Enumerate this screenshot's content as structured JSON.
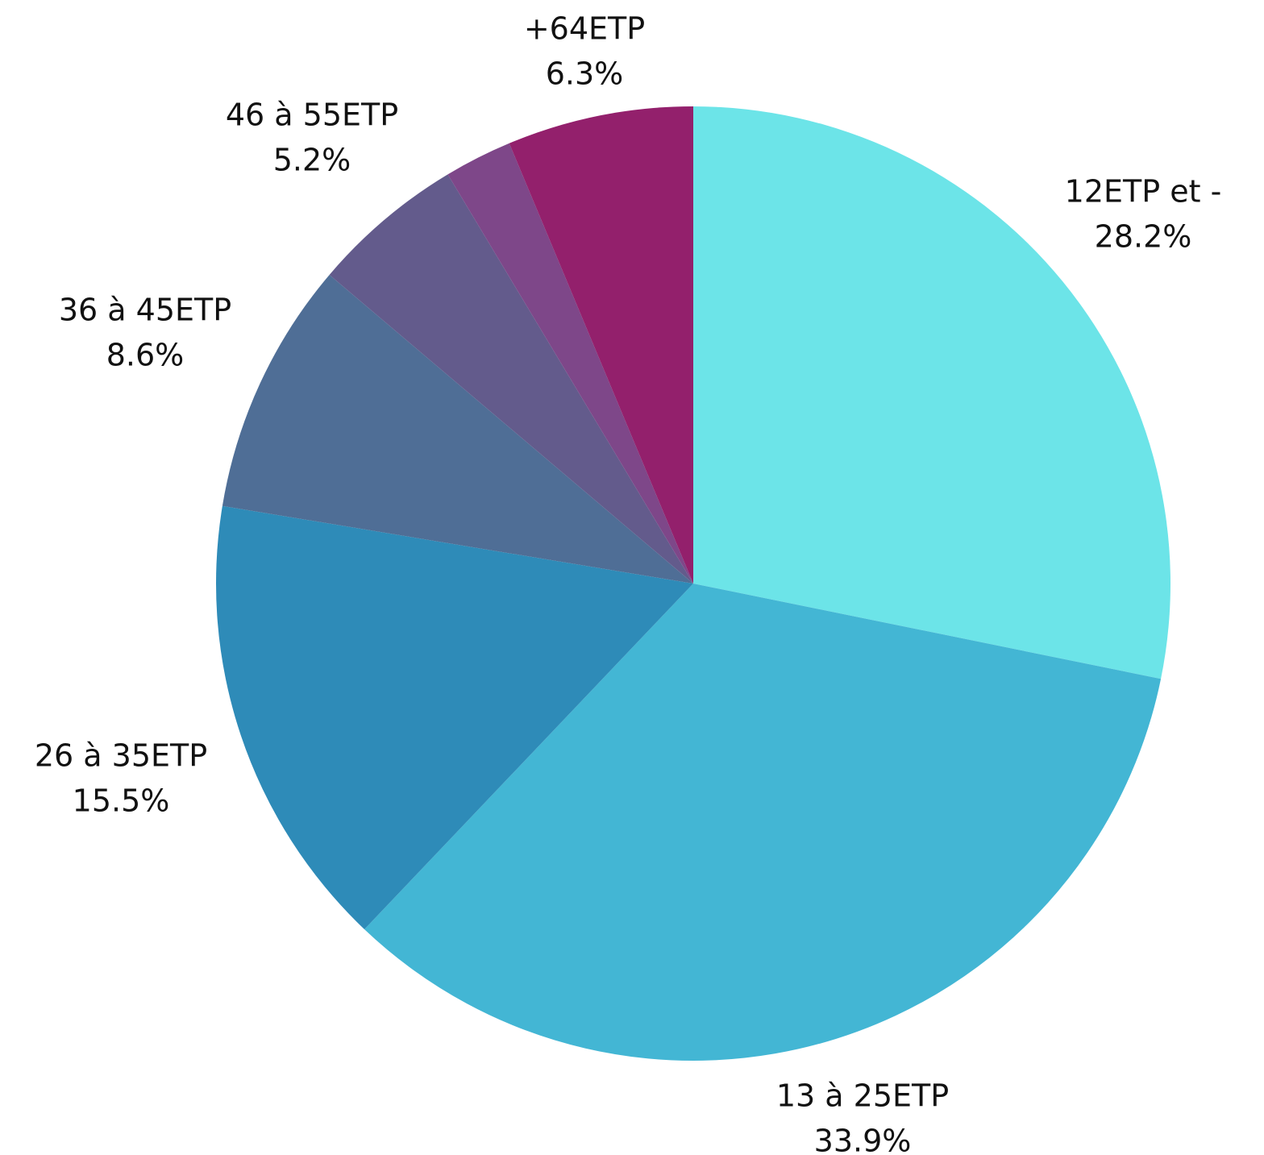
{
  "chart_data": {
    "type": "pie",
    "categories": [
      "12ETP et -",
      "13 à 25ETP",
      "26 à 35ETP",
      "36 à 45ETP",
      "46 à 55ETP",
      null,
      "+64ETP"
    ],
    "values": [
      28.2,
      33.9,
      15.5,
      8.6,
      5.2,
      2.3,
      6.3
    ],
    "value_labels": [
      "28.2%",
      "33.9%",
      "15.5%",
      "8.6%",
      "5.2%",
      null,
      "6.3%"
    ],
    "colors": [
      "#6ce4e8",
      "#43b6d4",
      "#2e8bb8",
      "#4f6e96",
      "#635b8c",
      "#7e4789",
      "#93206c"
    ]
  }
}
